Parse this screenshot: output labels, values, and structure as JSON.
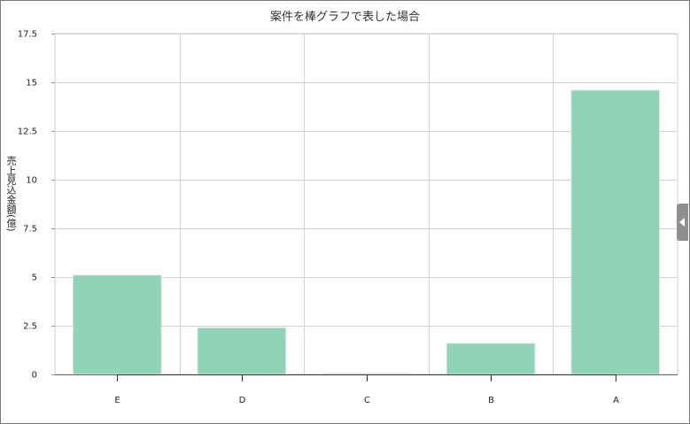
{
  "chart_data": {
    "type": "bar",
    "title": "案件を棒グラフで表した場合",
    "xlabel": "",
    "ylabel": "売上見込金額(億)",
    "categories": [
      "E",
      "D",
      "C",
      "B",
      "A"
    ],
    "values": [
      5.1,
      2.4,
      0.05,
      1.6,
      14.6
    ],
    "ylim": [
      0,
      17.5
    ],
    "yticks": [
      "0",
      "2.5",
      "5",
      "7.5",
      "10",
      "12.5",
      "15",
      "17.5"
    ],
    "grid": true,
    "bar_color": "#8fd3b8"
  }
}
